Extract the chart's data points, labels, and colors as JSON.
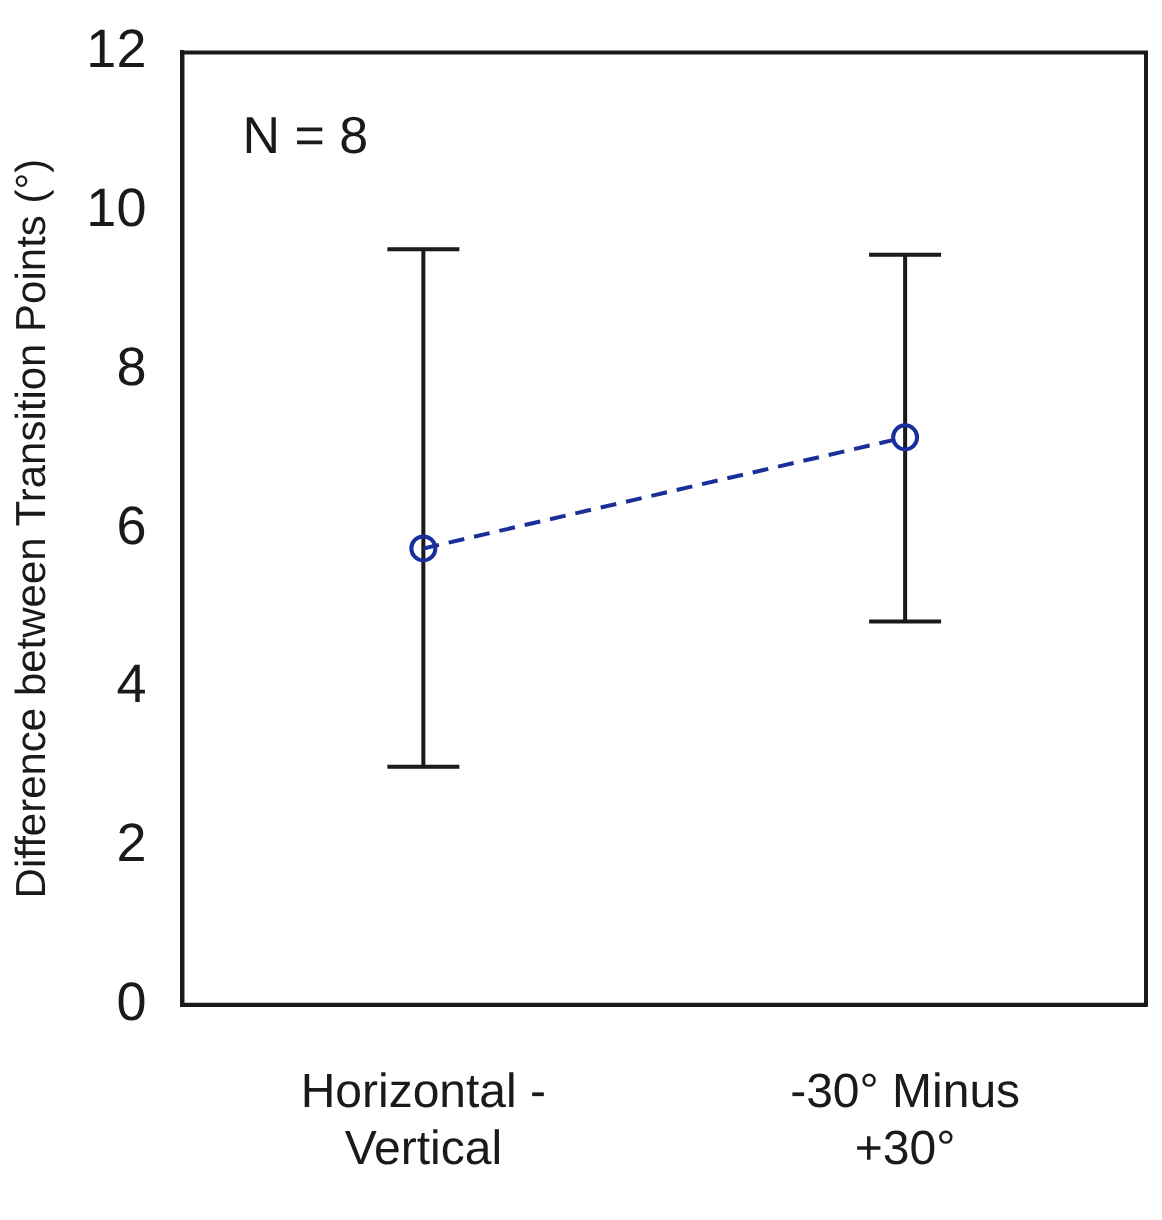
{
  "chart_data": {
    "type": "line",
    "ylabel": "Difference between Transition Points (°)",
    "categories": [
      "Horizontal - Vertical",
      "-30° Minus +30°"
    ],
    "series": [
      {
        "color": "#1a2f9a",
        "values": [
          5.75,
          7.15
        ],
        "errors": [
          [
            3.0,
            9.52
          ],
          [
            4.83,
            9.45
          ]
        ]
      }
    ],
    "ylim": [
      0,
      12
    ],
    "yticks": [
      0,
      2,
      4,
      6,
      8,
      10,
      12
    ],
    "grid": false,
    "legend": false,
    "marker": "circle",
    "line_style": "dashed",
    "annotations": [
      "N = 8"
    ]
  }
}
